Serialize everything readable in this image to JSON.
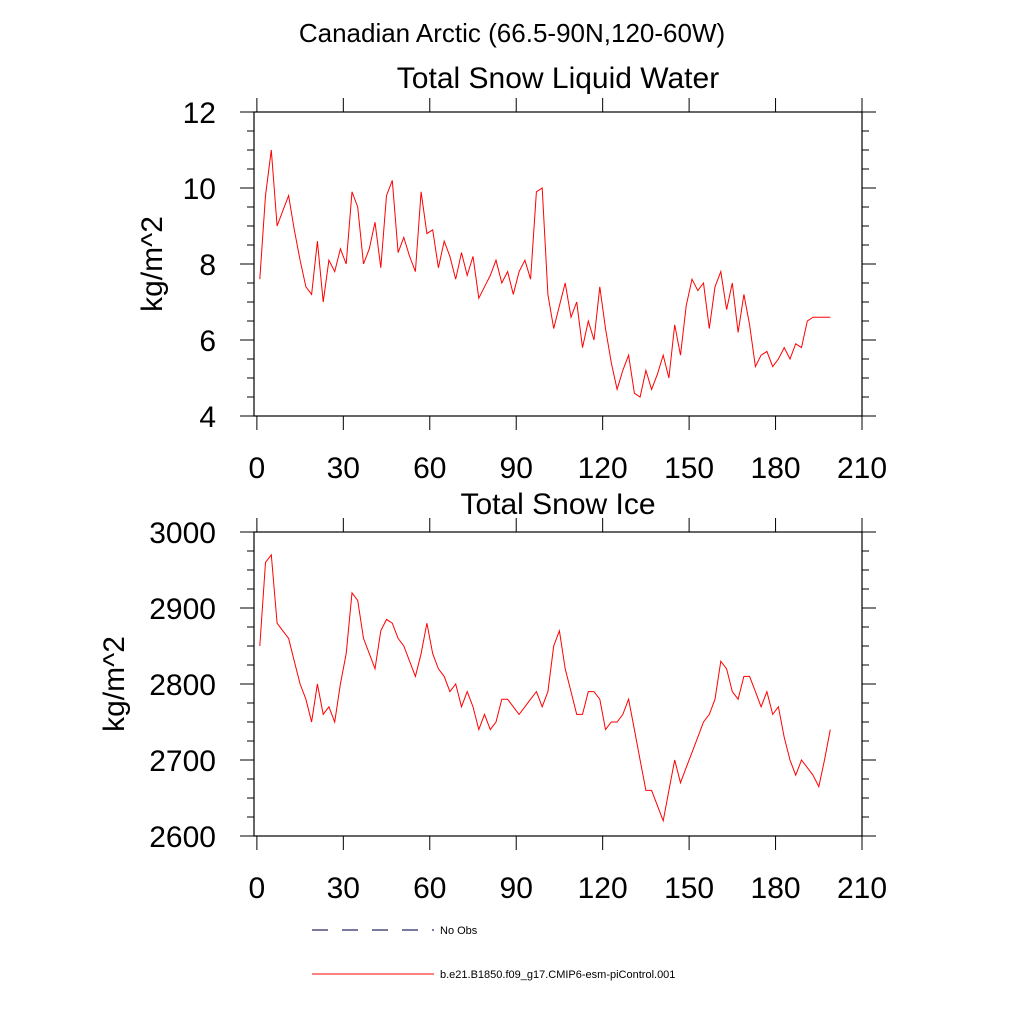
{
  "figure": {
    "suptitle": "Canadian Arctic (66.5-90N,120-60W)"
  },
  "legend": {
    "entries": [
      {
        "label": "No Obs",
        "style": "dashed",
        "color": "#2a2a66"
      },
      {
        "label": "b.e21.B1850.f09_g17.CMIP6-esm-piControl.001",
        "style": "solid",
        "color": "#ff0000"
      }
    ]
  },
  "chart_data": [
    {
      "type": "line",
      "title": "Total Snow Liquid Water",
      "xlabel": "",
      "ylabel": "kg/m^2",
      "xlim": [
        -1,
        210
      ],
      "ylim": [
        4,
        12
      ],
      "xticks": [
        0,
        30,
        60,
        90,
        120,
        150,
        180,
        210
      ],
      "xtick_labels": [
        "0",
        "30",
        "60",
        "90",
        "120",
        "150",
        "180",
        "210"
      ],
      "yticks": [
        4,
        6,
        8,
        10,
        12
      ],
      "ytick_labels": [
        "4",
        "6",
        "8",
        "10",
        "12"
      ],
      "series": [
        {
          "name": "b.e21.B1850.f09_g17.CMIP6-esm-piControl.001",
          "color": "#ff0000",
          "x": [
            1,
            3,
            5,
            7,
            9,
            11,
            13,
            15,
            17,
            19,
            21,
            23,
            25,
            27,
            29,
            31,
            33,
            35,
            37,
            39,
            41,
            43,
            45,
            47,
            49,
            51,
            53,
            55,
            57,
            59,
            61,
            63,
            65,
            67,
            69,
            71,
            73,
            75,
            77,
            79,
            81,
            83,
            85,
            87,
            89,
            91,
            93,
            95,
            97,
            99,
            101,
            103,
            105,
            107,
            109,
            111,
            113,
            115,
            117,
            119,
            121,
            123,
            125,
            127,
            129,
            131,
            133,
            135,
            137,
            139,
            141,
            143,
            145,
            147,
            149,
            151,
            153,
            155,
            157,
            159,
            161,
            163,
            165,
            167,
            169,
            171,
            173,
            175,
            177,
            179,
            181,
            183,
            185,
            187,
            189,
            191,
            193,
            195,
            197,
            199
          ],
          "values": [
            7.6,
            9.8,
            11.0,
            9.0,
            9.4,
            9.8,
            8.9,
            8.1,
            7.4,
            7.2,
            8.6,
            7.0,
            8.1,
            7.8,
            8.4,
            8.0,
            9.9,
            9.5,
            8.0,
            8.4,
            9.1,
            7.9,
            9.8,
            10.2,
            8.3,
            8.7,
            8.2,
            7.8,
            9.9,
            8.8,
            8.9,
            7.9,
            8.6,
            8.2,
            7.6,
            8.3,
            7.7,
            8.2,
            7.1,
            7.4,
            7.7,
            8.1,
            7.5,
            7.8,
            7.2,
            7.8,
            8.1,
            7.6,
            9.9,
            10.0,
            7.2,
            6.3,
            6.9,
            7.5,
            6.6,
            7.0,
            5.8,
            6.5,
            6.0,
            7.4,
            6.3,
            5.4,
            4.7,
            5.2,
            5.6,
            4.6,
            4.5,
            5.2,
            4.7,
            5.1,
            5.6,
            5.0,
            6.4,
            5.6,
            6.9,
            7.6,
            7.3,
            7.5,
            6.3,
            7.4,
            7.8,
            6.8,
            7.5,
            6.2,
            7.2,
            6.4,
            5.3,
            5.6,
            5.7,
            5.3,
            5.5,
            5.8,
            5.5,
            5.9,
            5.8,
            6.5,
            6.6,
            6.6,
            6.6,
            6.6
          ]
        }
      ]
    },
    {
      "type": "line",
      "title": "Total Snow Ice",
      "xlabel": "",
      "ylabel": "kg/m^2",
      "xlim": [
        -1,
        210
      ],
      "ylim": [
        2600,
        3000
      ],
      "xticks": [
        0,
        30,
        60,
        90,
        120,
        150,
        180,
        210
      ],
      "xtick_labels": [
        "0",
        "30",
        "60",
        "90",
        "120",
        "150",
        "180",
        "210"
      ],
      "yticks": [
        2600,
        2700,
        2800,
        2900,
        3000
      ],
      "ytick_labels": [
        "2600",
        "2700",
        "2800",
        "2900",
        "3000"
      ],
      "series": [
        {
          "name": "b.e21.B1850.f09_g17.CMIP6-esm-piControl.001",
          "color": "#ff0000",
          "x": [
            1,
            3,
            5,
            7,
            9,
            11,
            13,
            15,
            17,
            19,
            21,
            23,
            25,
            27,
            29,
            31,
            33,
            35,
            37,
            39,
            41,
            43,
            45,
            47,
            49,
            51,
            53,
            55,
            57,
            59,
            61,
            63,
            65,
            67,
            69,
            71,
            73,
            75,
            77,
            79,
            81,
            83,
            85,
            87,
            89,
            91,
            93,
            95,
            97,
            99,
            101,
            103,
            105,
            107,
            109,
            111,
            113,
            115,
            117,
            119,
            121,
            123,
            125,
            127,
            129,
            131,
            133,
            135,
            137,
            139,
            141,
            143,
            145,
            147,
            149,
            151,
            153,
            155,
            157,
            159,
            161,
            163,
            165,
            167,
            169,
            171,
            173,
            175,
            177,
            179,
            181,
            183,
            185,
            187,
            189,
            191,
            193,
            195,
            197,
            199
          ],
          "values": [
            2850,
            2960,
            2970,
            2880,
            2870,
            2860,
            2830,
            2800,
            2780,
            2750,
            2800,
            2760,
            2770,
            2750,
            2800,
            2840,
            2920,
            2910,
            2860,
            2840,
            2820,
            2870,
            2885,
            2880,
            2860,
            2850,
            2830,
            2810,
            2840,
            2880,
            2840,
            2820,
            2810,
            2790,
            2800,
            2770,
            2790,
            2770,
            2740,
            2760,
            2740,
            2750,
            2780,
            2780,
            2770,
            2760,
            2770,
            2780,
            2790,
            2770,
            2790,
            2850,
            2870,
            2820,
            2790,
            2760,
            2760,
            2790,
            2790,
            2780,
            2740,
            2750,
            2750,
            2760,
            2780,
            2740,
            2700,
            2660,
            2660,
            2640,
            2620,
            2660,
            2700,
            2670,
            2690,
            2710,
            2730,
            2750,
            2760,
            2780,
            2830,
            2820,
            2790,
            2780,
            2810,
            2810,
            2790,
            2770,
            2790,
            2760,
            2770,
            2730,
            2700,
            2680,
            2700,
            2690,
            2680,
            2665,
            2700,
            2740
          ]
        }
      ]
    }
  ]
}
